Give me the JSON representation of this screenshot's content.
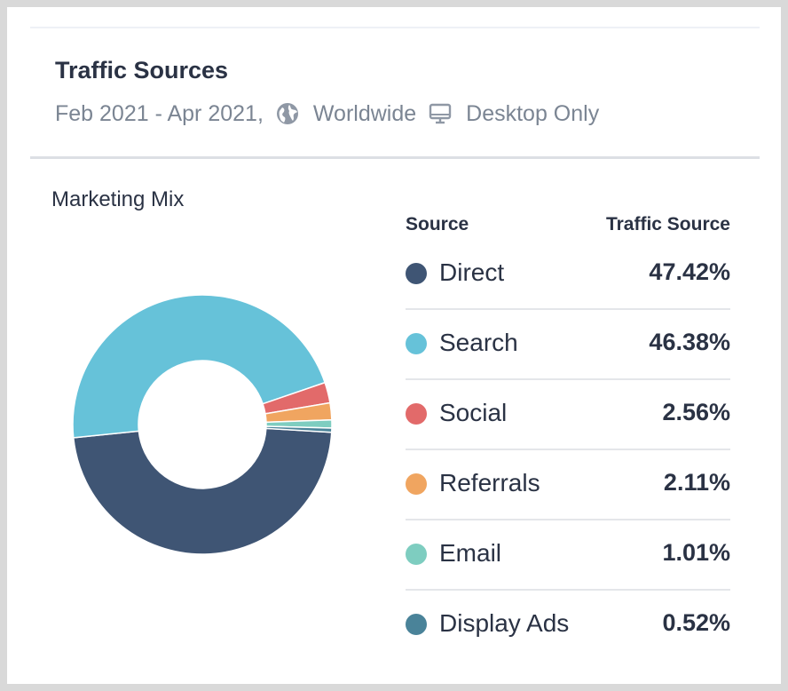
{
  "header": {
    "title": "Traffic Sources",
    "date_range": "Feb 2021 - Apr 2021,",
    "region_icon": "globe-icon",
    "region": "Worldwide",
    "device_icon": "desktop-monitor-icon",
    "device": "Desktop Only"
  },
  "chart_data": {
    "type": "pie",
    "variant": "donut",
    "title": "Marketing Mix",
    "legend_headers": {
      "source": "Source",
      "value": "Traffic Source"
    },
    "categories": [
      "Direct",
      "Search",
      "Social",
      "Referrals",
      "Email",
      "Display Ads"
    ],
    "values": [
      47.42,
      46.38,
      2.56,
      2.11,
      1.01,
      0.52
    ],
    "value_labels": [
      "47.42%",
      "46.38%",
      "2.56%",
      "2.11%",
      "1.01%",
      "0.52%"
    ],
    "colors": [
      "#3f5574",
      "#66c2d9",
      "#e26a6a",
      "#f0a560",
      "#7ecdc0",
      "#4a8399"
    ],
    "legend_position": "right"
  }
}
